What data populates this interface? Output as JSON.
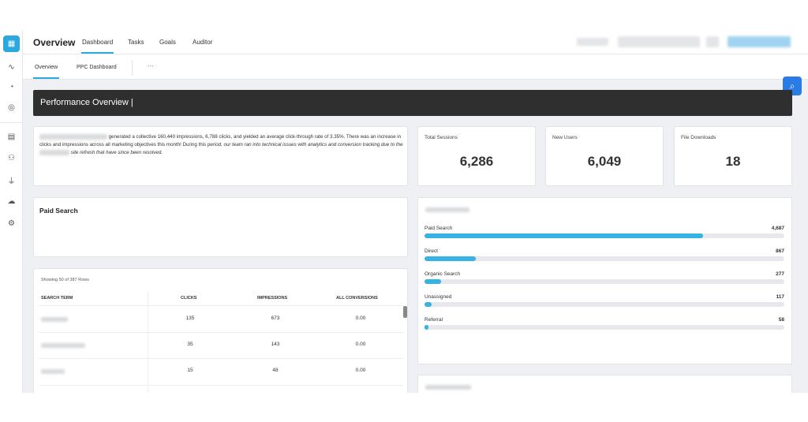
{
  "header": {
    "title": "Overview",
    "tabs": [
      {
        "label": "Dashboard",
        "active": true
      },
      {
        "label": "Tasks",
        "active": false
      },
      {
        "label": "Goals",
        "active": false
      },
      {
        "label": "Auditor",
        "active": false
      }
    ]
  },
  "subnav": {
    "tabs": [
      {
        "label": "Overview",
        "active": true
      },
      {
        "label": "PPC Dashboard",
        "active": false
      }
    ],
    "more": "···"
  },
  "sidebar": {
    "icons": [
      "grid-icon",
      "pulse-icon",
      "pie-chart-icon",
      "chat-icon",
      "document-icon",
      "users-icon",
      "plug-icon",
      "cloud-icon",
      "gear-icon"
    ]
  },
  "banner": {
    "title": "Performance Overview |"
  },
  "summary": {
    "part1": "generated a collective 160,440 impressions, 6,788 clicks, and yielded an average click-through rate of 3.35%. There was an increase in clicks and impressions across all marketing objectives this month! During this ",
    "part2_italic": "period, our team ran into technical issues with analytics and conversion tracking due to the",
    "part3_italic": "site refresh that have since been resolved."
  },
  "kpis": [
    {
      "label": "Total Sessions",
      "value": "6,286"
    },
    {
      "label": "New Users",
      "value": "6,049"
    },
    {
      "label": "File Downloads",
      "value": "18"
    }
  ],
  "paid_search": {
    "title": "Paid Search"
  },
  "table": {
    "note": "Showing 50 of 387 Rows",
    "headers": [
      "SEARCH TERM",
      "CLICKS",
      "IMPRESSIONS",
      "ALL CONVERSIONS"
    ],
    "rows": [
      {
        "clicks": "135",
        "impressions": "673",
        "conversions": "0.00"
      },
      {
        "clicks": "35",
        "impressions": "143",
        "conversions": "0.00"
      },
      {
        "clicks": "15",
        "impressions": "48",
        "conversions": "0.00"
      }
    ]
  },
  "channels": {
    "max": 4687,
    "items": [
      {
        "label": "Paid Search",
        "value": 4687,
        "display": "4,687"
      },
      {
        "label": "Direct",
        "value": 867,
        "display": "867"
      },
      {
        "label": "Organic Search",
        "value": 277,
        "display": "277"
      },
      {
        "label": "Unassigned",
        "value": 117,
        "display": "117"
      },
      {
        "label": "Referral",
        "value": 58,
        "display": "58"
      }
    ]
  },
  "colors": {
    "accent": "#2ba8e0",
    "bar": "#36b3e0",
    "banner": "#2f2f2f",
    "fab": "#2a7be4"
  }
}
